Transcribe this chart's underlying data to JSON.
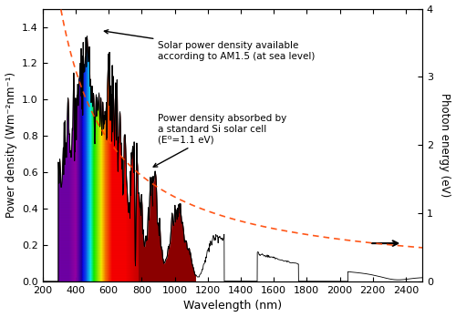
{
  "xlabel": "Wavelength (nm)",
  "ylabel": "Power density (Wm⁻²nm⁻¹)",
  "ylabel_right": "Photon energy (eV)",
  "xlim": [
    200,
    2500
  ],
  "ylim": [
    0,
    1.5
  ],
  "ylim_right": [
    0,
    4
  ],
  "annotation1": "Solar power density available\naccording to AM1.5 (at sea level)",
  "annotation2": "Power density absorbed by\na standard Si solar cell\n(Eᴳ=1.1 eV)",
  "bg_color": "#ffffff",
  "si_cutoff_nm": 1127,
  "xticks": [
    200,
    400,
    600,
    800,
    1000,
    1200,
    1400,
    1600,
    1800,
    2000,
    2200,
    2400
  ],
  "yticks_left": [
    0.0,
    0.2,
    0.4,
    0.6,
    0.8,
    1.0,
    1.2,
    1.4
  ],
  "yticks_right": [
    0,
    1,
    2,
    3,
    4
  ]
}
